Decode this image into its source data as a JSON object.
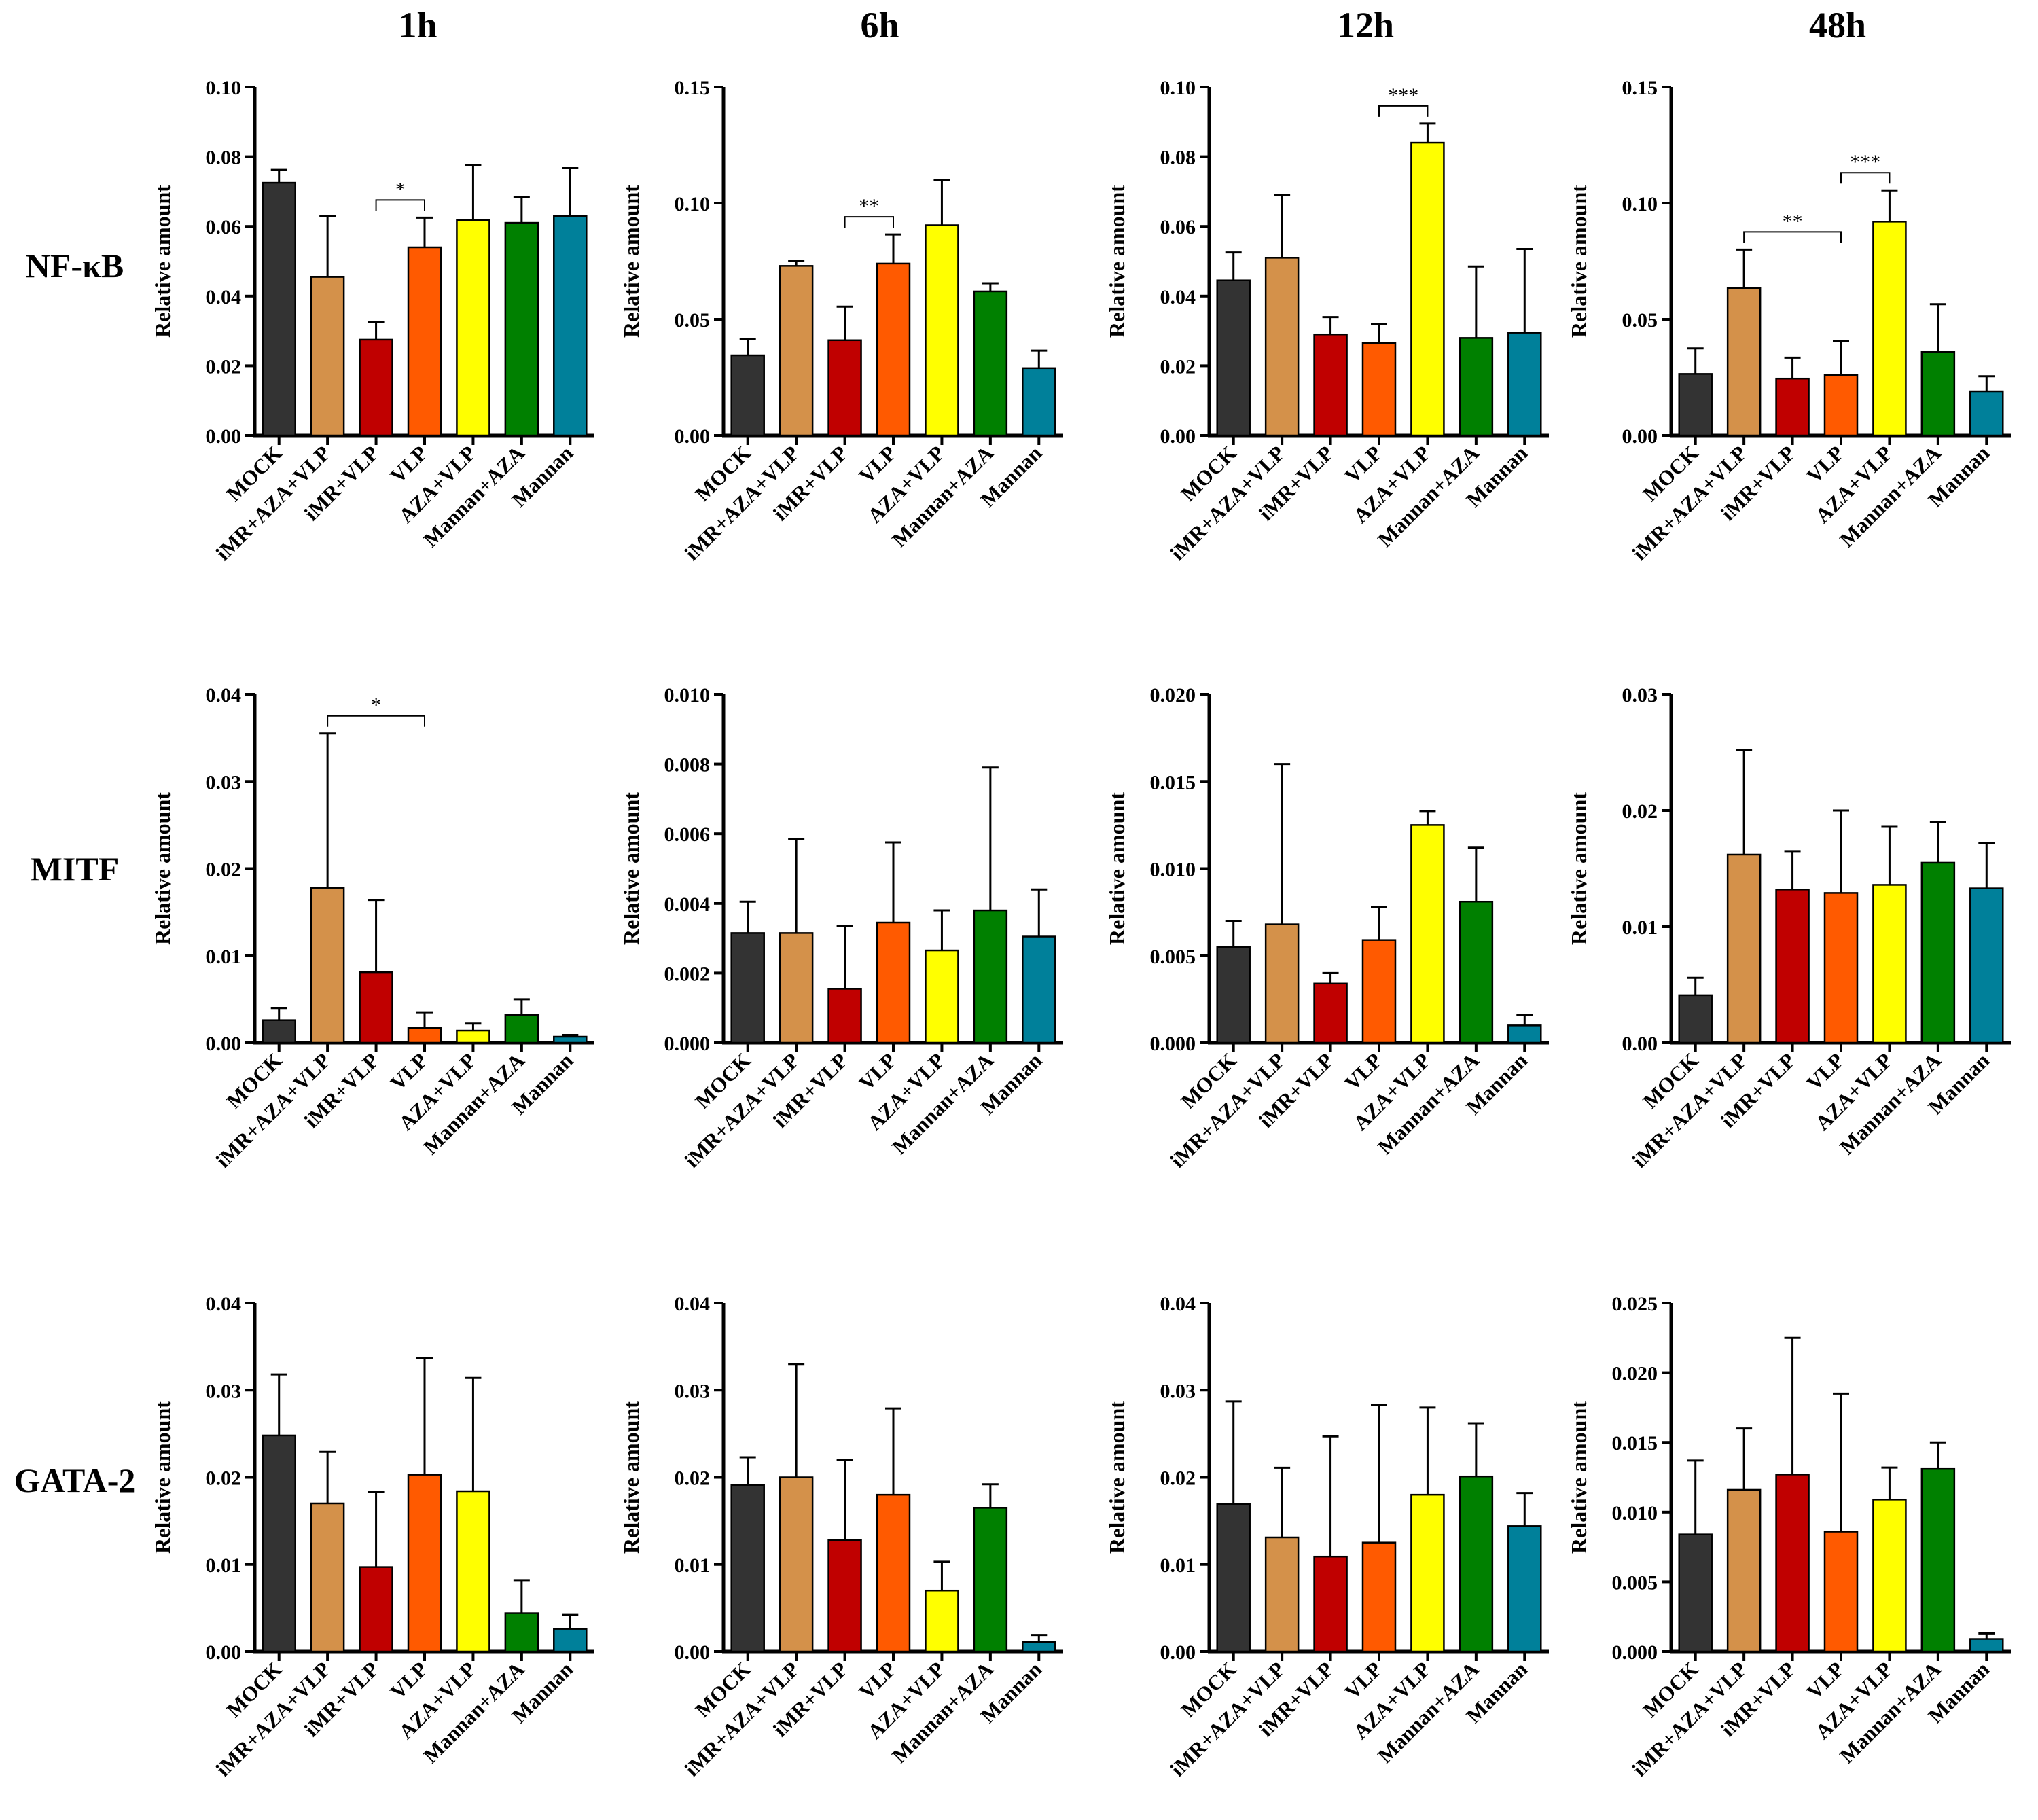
{
  "columns": [
    "1h",
    "6h",
    "12h",
    "48h"
  ],
  "rows": [
    "NF-κB",
    "MITF",
    "GATA-2"
  ],
  "colors": {
    "MOCK": "#333333",
    "iMR+AZA+VLP": "#d4914a",
    "iMR+VLP": "#c00000",
    "VLP": "#ff5a00",
    "AZA+VLP": "#ffff00",
    "Mannan+AZA": "#008000",
    "Mannan": "#00809a"
  },
  "chart_data": [
    {
      "type": "bar",
      "row": "NF-κB",
      "time": "1h",
      "ylabel": "Relative amount",
      "categories": [
        "MOCK",
        "iMR+AZA+VLP",
        "iMR+VLP",
        "VLP",
        "AZA+VLP",
        "Mannan+AZA",
        "Mannan"
      ],
      "values": [
        0.0725,
        0.0455,
        0.0275,
        0.054,
        0.0618,
        0.061,
        0.063
      ],
      "errors": [
        0.0037,
        0.0175,
        0.005,
        0.0085,
        0.0157,
        0.0075,
        0.0137
      ],
      "ylim": [
        0,
        0.1
      ],
      "ticks": [
        "0.00",
        "0.02",
        "0.04",
        "0.06",
        "0.08",
        "0.10"
      ],
      "annotations": [
        {
          "from": 2,
          "to": 3,
          "label": "*"
        }
      ]
    },
    {
      "type": "bar",
      "row": "NF-κB",
      "time": "6h",
      "ylabel": "Relative amount",
      "categories": [
        "MOCK",
        "iMR+AZA+VLP",
        "iMR+VLP",
        "VLP",
        "AZA+VLP",
        "Mannan+AZA",
        "Mannan"
      ],
      "values": [
        0.0345,
        0.073,
        0.041,
        0.074,
        0.0905,
        0.062,
        0.029
      ],
      "errors": [
        0.007,
        0.0022,
        0.0145,
        0.0125,
        0.0195,
        0.0035,
        0.0075
      ],
      "ylim": [
        0,
        0.15
      ],
      "ticks": [
        "0.00",
        "0.05",
        "0.10",
        "0.15"
      ],
      "annotations": [
        {
          "from": 2,
          "to": 3,
          "label": "**"
        }
      ]
    },
    {
      "type": "bar",
      "row": "NF-κB",
      "time": "12h",
      "ylabel": "Relative amount",
      "categories": [
        "MOCK",
        "iMR+AZA+VLP",
        "iMR+VLP",
        "VLP",
        "AZA+VLP",
        "Mannan+AZA",
        "Mannan"
      ],
      "values": [
        0.0445,
        0.051,
        0.029,
        0.0265,
        0.084,
        0.028,
        0.0295
      ],
      "errors": [
        0.008,
        0.018,
        0.005,
        0.0055,
        0.0055,
        0.0205,
        0.024
      ],
      "ylim": [
        0,
        0.1
      ],
      "ticks": [
        "0.00",
        "0.02",
        "0.04",
        "0.06",
        "0.08",
        "0.10"
      ],
      "annotations": [
        {
          "from": 3,
          "to": 4,
          "label": "***"
        }
      ]
    },
    {
      "type": "bar",
      "row": "NF-κB",
      "time": "48h",
      "ylabel": "Relative amount",
      "categories": [
        "MOCK",
        "iMR+AZA+VLP",
        "iMR+VLP",
        "VLP",
        "AZA+VLP",
        "Mannan+AZA",
        "Mannan"
      ],
      "values": [
        0.0265,
        0.0635,
        0.0245,
        0.026,
        0.092,
        0.036,
        0.019
      ],
      "errors": [
        0.011,
        0.0165,
        0.009,
        0.0145,
        0.0135,
        0.0205,
        0.0065
      ],
      "ylim": [
        0,
        0.15
      ],
      "ticks": [
        "0.00",
        "0.05",
        "0.10",
        "0.15"
      ],
      "annotations": [
        {
          "from": 1,
          "to": 3,
          "label": "**"
        },
        {
          "from": 3,
          "to": 4,
          "label": "***"
        }
      ]
    },
    {
      "type": "bar",
      "row": "MITF",
      "time": "1h",
      "ylabel": "Relative amount",
      "categories": [
        "MOCK",
        "iMR+AZA+VLP",
        "iMR+VLP",
        "VLP",
        "AZA+VLP",
        "Mannan+AZA",
        "Mannan"
      ],
      "values": [
        0.0026,
        0.0178,
        0.0081,
        0.0017,
        0.0014,
        0.0032,
        0.0007
      ],
      "errors": [
        0.0014,
        0.0177,
        0.0083,
        0.0018,
        0.0008,
        0.0018,
        0.0002
      ],
      "ylim": [
        0,
        0.04
      ],
      "ticks": [
        "0.00",
        "0.01",
        "0.02",
        "0.03",
        "0.04"
      ],
      "annotations": [
        {
          "from": 1,
          "to": 3,
          "label": "*"
        }
      ]
    },
    {
      "type": "bar",
      "row": "MITF",
      "time": "6h",
      "ylabel": "Relative amount",
      "categories": [
        "MOCK",
        "iMR+AZA+VLP",
        "iMR+VLP",
        "VLP",
        "AZA+VLP",
        "Mannan+AZA",
        "Mannan"
      ],
      "values": [
        0.00315,
        0.00315,
        0.00155,
        0.00345,
        0.00265,
        0.0038,
        0.00305
      ],
      "errors": [
        0.0009,
        0.0027,
        0.0018,
        0.0023,
        0.00115,
        0.0041,
        0.00135
      ],
      "ylim": [
        0,
        0.01
      ],
      "ticks": [
        "0.000",
        "0.002",
        "0.004",
        "0.006",
        "0.008",
        "0.010"
      ],
      "annotations": []
    },
    {
      "type": "bar",
      "row": "MITF",
      "time": "12h",
      "ylabel": "Relative amount",
      "categories": [
        "MOCK",
        "iMR+AZA+VLP",
        "iMR+VLP",
        "VLP",
        "AZA+VLP",
        "Mannan+AZA",
        "Mannan"
      ],
      "values": [
        0.0055,
        0.0068,
        0.0034,
        0.0059,
        0.0125,
        0.0081,
        0.001
      ],
      "errors": [
        0.0015,
        0.0092,
        0.0006,
        0.0019,
        0.0008,
        0.0031,
        0.0006
      ],
      "ylim": [
        0,
        0.02
      ],
      "ticks": [
        "0.000",
        "0.005",
        "0.010",
        "0.015",
        "0.020"
      ],
      "annotations": []
    },
    {
      "type": "bar",
      "row": "MITF",
      "time": "48h",
      "ylabel": "Relative amount",
      "categories": [
        "MOCK",
        "iMR+AZA+VLP",
        "iMR+VLP",
        "VLP",
        "AZA+VLP",
        "Mannan+AZA",
        "Mannan"
      ],
      "values": [
        0.0041,
        0.0162,
        0.0132,
        0.0129,
        0.0136,
        0.0155,
        0.0133
      ],
      "errors": [
        0.0015,
        0.009,
        0.0033,
        0.0071,
        0.005,
        0.0035,
        0.0039
      ],
      "ylim": [
        0,
        0.03
      ],
      "ticks": [
        "0.00",
        "0.01",
        "0.02",
        "0.03"
      ],
      "annotations": []
    },
    {
      "type": "bar",
      "row": "GATA-2",
      "time": "1h",
      "ylabel": "Relative amount",
      "categories": [
        "MOCK",
        "iMR+AZA+VLP",
        "iMR+VLP",
        "VLP",
        "AZA+VLP",
        "Mannan+AZA",
        "Mannan"
      ],
      "values": [
        0.0248,
        0.017,
        0.0097,
        0.0203,
        0.0184,
        0.0044,
        0.0026
      ],
      "errors": [
        0.007,
        0.0059,
        0.0086,
        0.0134,
        0.013,
        0.0038,
        0.0016
      ],
      "ylim": [
        0,
        0.04
      ],
      "ticks": [
        "0.00",
        "0.01",
        "0.02",
        "0.03",
        "0.04"
      ],
      "annotations": []
    },
    {
      "type": "bar",
      "row": "GATA-2",
      "time": "6h",
      "ylabel": "Relative amount",
      "categories": [
        "MOCK",
        "iMR+AZA+VLP",
        "iMR+VLP",
        "VLP",
        "AZA+VLP",
        "Mannan+AZA",
        "Mannan"
      ],
      "values": [
        0.0191,
        0.02,
        0.0128,
        0.018,
        0.007,
        0.0165,
        0.0011
      ],
      "errors": [
        0.0032,
        0.013,
        0.0092,
        0.0099,
        0.0033,
        0.0027,
        0.0008
      ],
      "ylim": [
        0,
        0.04
      ],
      "ticks": [
        "0.00",
        "0.01",
        "0.02",
        "0.03",
        "0.04"
      ],
      "annotations": []
    },
    {
      "type": "bar",
      "row": "GATA-2",
      "time": "12h",
      "ylabel": "Relative amount",
      "categories": [
        "MOCK",
        "iMR+AZA+VLP",
        "iMR+VLP",
        "VLP",
        "AZA+VLP",
        "Mannan+AZA",
        "Mannan"
      ],
      "values": [
        0.0169,
        0.0131,
        0.0109,
        0.0125,
        0.018,
        0.0201,
        0.0144
      ],
      "errors": [
        0.0118,
        0.008,
        0.0138,
        0.0158,
        0.01,
        0.0061,
        0.0038
      ],
      "ylim": [
        0,
        0.04
      ],
      "ticks": [
        "0.00",
        "0.01",
        "0.02",
        "0.03",
        "0.04"
      ],
      "annotations": []
    },
    {
      "type": "bar",
      "row": "GATA-2",
      "time": "48h",
      "ylabel": "Relative amount",
      "categories": [
        "MOCK",
        "iMR+AZA+VLP",
        "iMR+VLP",
        "VLP",
        "AZA+VLP",
        "Mannan+AZA",
        "Mannan"
      ],
      "values": [
        0.0084,
        0.0116,
        0.0127,
        0.0086,
        0.0109,
        0.0131,
        0.0009
      ],
      "errors": [
        0.0053,
        0.0044,
        0.0098,
        0.0099,
        0.0023,
        0.0019,
        0.0004
      ],
      "ylim": [
        0,
        0.025
      ],
      "ticks": [
        "0.000",
        "0.005",
        "0.010",
        "0.015",
        "0.020",
        "0.025"
      ],
      "annotations": []
    }
  ]
}
